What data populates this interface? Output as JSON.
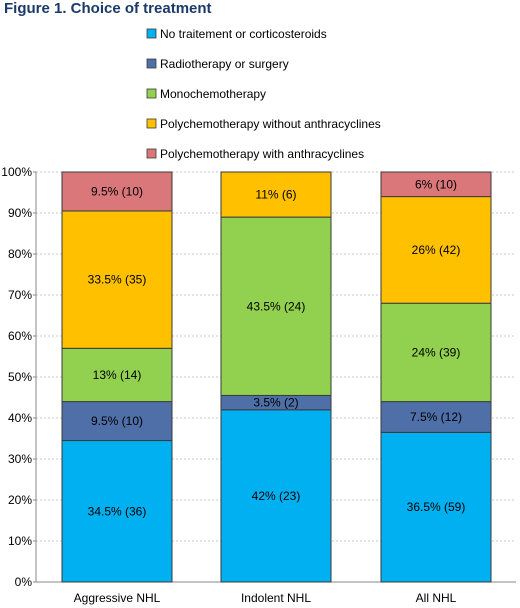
{
  "figure": {
    "title": "Figure 1. Choice of treatment"
  },
  "chart_data": {
    "type": "bar",
    "stacked": true,
    "percent": true,
    "categories": [
      "Aggressive NHL",
      "Indolent NHL",
      "All NHL"
    ],
    "series": [
      {
        "name": "No traitement or corticosteroids",
        "color": "#00b0f0",
        "values": [
          34.5,
          42,
          36.5
        ],
        "labels": [
          "34.5% (36)",
          "42% (23)",
          "36.5% (59)"
        ]
      },
      {
        "name": "Radiotherapy or surgery",
        "color": "#4f6fa8",
        "values": [
          9.5,
          3.5,
          7.5
        ],
        "labels": [
          "9.5% (10)",
          "3.5% (2)",
          "7.5% (12)"
        ]
      },
      {
        "name": "Monochemotherapy",
        "color": "#92d050",
        "values": [
          13,
          43.5,
          24
        ],
        "labels": [
          "13% (14)",
          "43.5% (24)",
          "24% (39)"
        ]
      },
      {
        "name": "Polychemotherapy without  anthracyclines",
        "color": "#ffc000",
        "values": [
          33.5,
          11,
          26
        ],
        "labels": [
          "33.5% (35)",
          "11% (6)",
          "26% (42)"
        ]
      },
      {
        "name": "Polychemotherapy with anthracyclines",
        "color": "#d9777a",
        "values": [
          9.5,
          0,
          6
        ],
        "labels": [
          "9.5% (10)",
          "",
          "6% (10)"
        ]
      }
    ],
    "ylim": [
      0,
      100
    ],
    "yticks": [
      "0%",
      "10%",
      "20%",
      "30%",
      "40%",
      "50%",
      "60%",
      "70%",
      "80%",
      "90%",
      "100%"
    ],
    "grid": true,
    "legend": "top"
  }
}
